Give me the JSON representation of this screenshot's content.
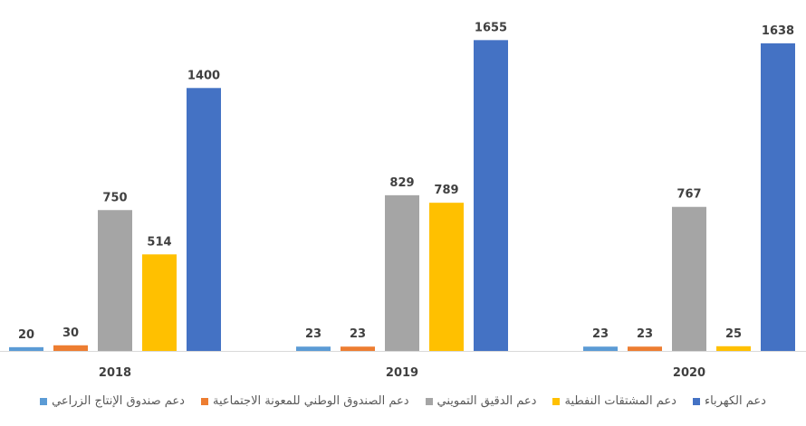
{
  "chart_data": {
    "type": "bar",
    "title": "",
    "categories": [
      "2018",
      "2019",
      "2020"
    ],
    "series": [
      {
        "name": "دعم صندوق الإنتاج الزراعي",
        "color": "#5B9BD5",
        "values": [
          20,
          23,
          23
        ]
      },
      {
        "name": "دعم الصندوق الوطني للمعونة الاجتماعية",
        "color": "#ED7D31",
        "values": [
          30,
          23,
          23
        ]
      },
      {
        "name": "دعم الدقيق التمويني",
        "color": "#A5A5A5",
        "values": [
          750,
          829,
          767
        ]
      },
      {
        "name": "دعم المشتقات النفطية",
        "color": "#FFC000",
        "values": [
          514,
          789,
          25
        ]
      },
      {
        "name": "دعم الكهرباء",
        "color": "#4472C4",
        "values": [
          1400,
          1655,
          1638
        ]
      }
    ],
    "ylim": [
      0,
      1700
    ],
    "grid": false,
    "legend": "bottom"
  }
}
